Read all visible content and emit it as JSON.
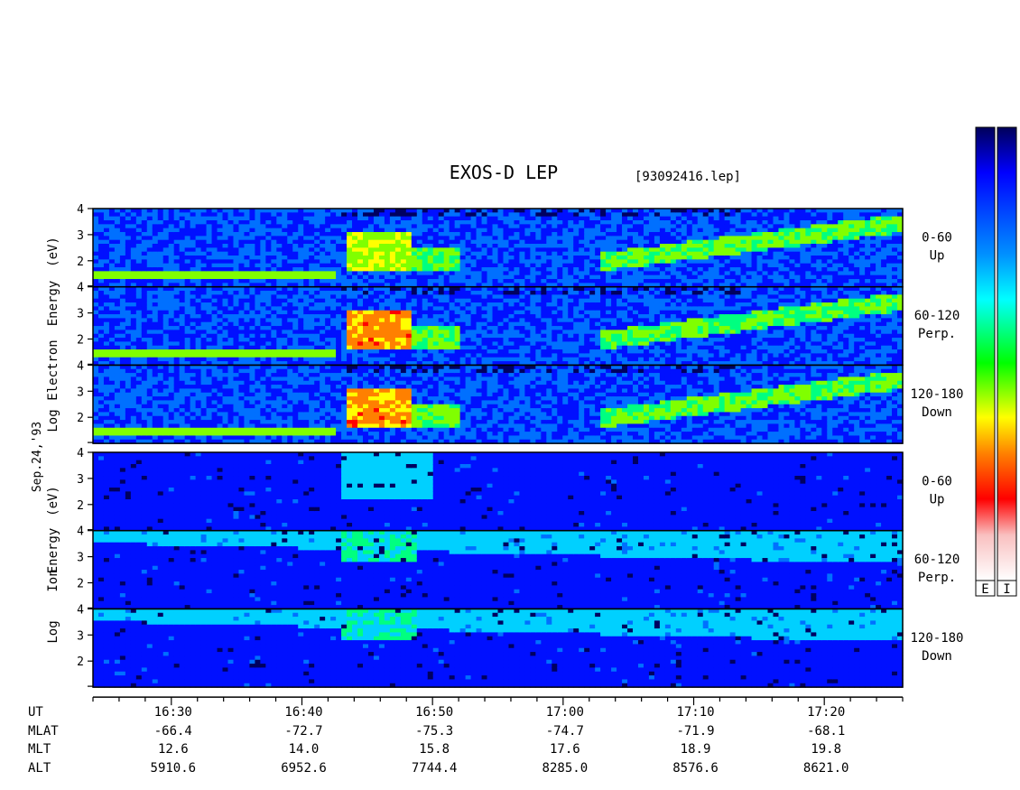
{
  "header": {
    "title": "EXOS-D LEP",
    "file": "[93092416.lep]"
  },
  "date_label": "Sep.24,'93",
  "chart_data": {
    "type": "heatmap",
    "x_axis": {
      "unit": "UT",
      "ticks": [
        "16:30",
        "16:40",
        "16:50",
        "17:00",
        "17:10",
        "17:20"
      ],
      "range": [
        "16:24",
        "17:26"
      ]
    },
    "y_range": [
      1,
      4
    ],
    "y_ticks": [
      "2",
      "3",
      "4"
    ],
    "groups": [
      {
        "species": "Electron",
        "ylabel": "Log Electron Energy (eV)",
        "ylabel_words": [
          "Log",
          "Electron",
          "Energy",
          "(eV)"
        ],
        "panels": [
          {
            "pitch_angle": "0-60",
            "direction": "Up"
          },
          {
            "pitch_angle": "60-120",
            "direction": "Perp."
          },
          {
            "pitch_angle": "120-180",
            "direction": "Down"
          }
        ]
      },
      {
        "species": "Ion",
        "ylabel": "Log Ion Energy (eV)",
        "ylabel_words": [
          "Log",
          "Ion",
          "Energy",
          "(eV)"
        ],
        "panels": [
          {
            "pitch_angle": "0-60",
            "direction": "Up"
          },
          {
            "pitch_angle": "60-120",
            "direction": "Perp."
          },
          {
            "pitch_angle": "120-180",
            "direction": "Down"
          }
        ]
      }
    ],
    "ephemeris": [
      {
        "label": "UT",
        "values": [
          "16:30",
          "16:40",
          "16:50",
          "17:00",
          "17:10",
          "17:20"
        ]
      },
      {
        "label": "MLAT",
        "values": [
          "-66.4",
          "-72.7",
          "-75.3",
          "-74.7",
          "-71.9",
          "-68.1"
        ]
      },
      {
        "label": "MLT",
        "values": [
          "12.6",
          "14.0",
          "15.8",
          "17.6",
          "18.9",
          "19.8"
        ]
      },
      {
        "label": "ALT",
        "values": [
          "5910.6",
          "6952.6",
          "7744.4",
          "8285.0",
          "8576.6",
          "8621.0"
        ]
      }
    ],
    "color_scales": [
      {
        "label": "E"
      },
      {
        "label": "I"
      }
    ],
    "colormap": [
      "#ffffff",
      "#f7c8c8",
      "#ff0000",
      "#ff8000",
      "#ffff00",
      "#00ff00",
      "#00ffff",
      "#0080ff",
      "#0000ff",
      "#00008b"
    ]
  }
}
